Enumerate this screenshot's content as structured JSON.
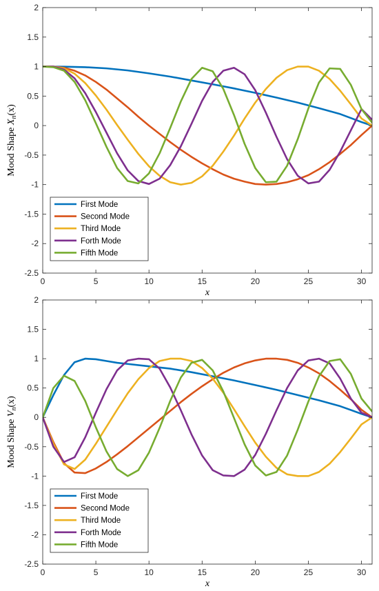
{
  "chart_data": [
    {
      "type": "line",
      "title": "",
      "xlabel": "x",
      "ylabel": "Mood Shape X_n(x)",
      "ylabel_parts": {
        "text": "Mood Shape ",
        "sym": "X",
        "sub": "n",
        "arg": "(x)"
      },
      "xlim": [
        0,
        31
      ],
      "ylim": [
        -2.5,
        2
      ],
      "xticks": [
        "0",
        "5",
        "10",
        "15",
        "20",
        "25",
        "30"
      ],
      "xtick_values": [
        0,
        5,
        10,
        15,
        20,
        25,
        30
      ],
      "yticks": [
        "2",
        "1.5",
        "1",
        "0.5",
        "0",
        "-0.5",
        "-1",
        "-1.5",
        "-2",
        "-2.5"
      ],
      "ytick_values": [
        2,
        1.5,
        1,
        0.5,
        0,
        -0.5,
        -1,
        -1.5,
        -2,
        -2.5
      ],
      "grid": false,
      "legend_position": "bottom-left",
      "series": [
        {
          "name": "First Mode",
          "color": "#0072BD",
          "x": [
            0,
            2,
            4,
            6,
            8,
            10,
            12,
            14,
            16,
            18,
            20,
            22,
            24,
            26,
            28,
            30,
            31
          ],
          "y": [
            1,
            0.998,
            0.99,
            0.97,
            0.935,
            0.885,
            0.83,
            0.765,
            0.7,
            0.63,
            0.555,
            0.475,
            0.39,
            0.295,
            0.195,
            0.06,
            0
          ]
        },
        {
          "name": "Second Mode",
          "color": "#D95319",
          "x": [
            0,
            1,
            2,
            3,
            4,
            5,
            6,
            7,
            8,
            9,
            10,
            11,
            12,
            13,
            14,
            15,
            16,
            17,
            18,
            19,
            20,
            21,
            22,
            23,
            24,
            25,
            26,
            27,
            28,
            29,
            30,
            31
          ],
          "y": [
            1,
            1,
            0.98,
            0.93,
            0.85,
            0.74,
            0.61,
            0.46,
            0.31,
            0.15,
            0.0,
            -0.14,
            -0.28,
            -0.41,
            -0.53,
            -0.64,
            -0.74,
            -0.83,
            -0.9,
            -0.95,
            -0.99,
            -1.0,
            -0.99,
            -0.96,
            -0.91,
            -0.84,
            -0.74,
            -0.62,
            -0.48,
            -0.33,
            -0.16,
            0
          ]
        },
        {
          "name": "Third Mode",
          "color": "#EDB120",
          "x": [
            0,
            1,
            2,
            3,
            4,
            5,
            6,
            7,
            8,
            9,
            10,
            11,
            12,
            13,
            14,
            15,
            16,
            17,
            18,
            19,
            20,
            21,
            22,
            23,
            24,
            25,
            26,
            27,
            28,
            29,
            30,
            31
          ],
          "y": [
            1,
            1,
            0.97,
            0.88,
            0.72,
            0.51,
            0.27,
            0.01,
            -0.24,
            -0.48,
            -0.69,
            -0.85,
            -0.96,
            -1.0,
            -0.97,
            -0.86,
            -0.68,
            -0.44,
            -0.17,
            0.12,
            0.39,
            0.62,
            0.81,
            0.94,
            1.0,
            1.0,
            0.93,
            0.79,
            0.59,
            0.36,
            0.12,
            0
          ]
        },
        {
          "name": "Forth Mode",
          "color": "#7E2F8E",
          "x": [
            0,
            1,
            2,
            3,
            4,
            5,
            6,
            7,
            8,
            9,
            10,
            11,
            12,
            13,
            14,
            15,
            16,
            17,
            18,
            19,
            20,
            21,
            22,
            23,
            24,
            25,
            26,
            27,
            28,
            29,
            30,
            31
          ],
          "y": [
            1,
            1,
            0.95,
            0.8,
            0.55,
            0.23,
            -0.12,
            -0.47,
            -0.76,
            -0.94,
            -0.99,
            -0.9,
            -0.67,
            -0.35,
            0.03,
            0.42,
            0.74,
            0.93,
            0.98,
            0.87,
            0.6,
            0.22,
            -0.19,
            -0.57,
            -0.85,
            -0.98,
            -0.95,
            -0.75,
            -0.44,
            -0.08,
            0.28,
            0.1
          ]
        },
        {
          "name": "Fifth Mode",
          "color": "#77AC30",
          "x": [
            0,
            1,
            2,
            3,
            4,
            5,
            6,
            7,
            8,
            9,
            10,
            11,
            12,
            13,
            14,
            15,
            16,
            17,
            18,
            19,
            20,
            21,
            22,
            23,
            24,
            25,
            26,
            27,
            28,
            29,
            30,
            31
          ],
          "y": [
            1,
            0.99,
            0.93,
            0.74,
            0.43,
            0.04,
            -0.36,
            -0.72,
            -0.94,
            -0.98,
            -0.81,
            -0.47,
            -0.04,
            0.41,
            0.79,
            0.98,
            0.92,
            0.62,
            0.18,
            -0.31,
            -0.72,
            -0.96,
            -0.95,
            -0.68,
            -0.23,
            0.29,
            0.73,
            0.97,
            0.96,
            0.69,
            0.28,
            0.05
          ]
        }
      ]
    },
    {
      "type": "line",
      "title": "",
      "xlabel": "x",
      "ylabel": "Mood Shape V_n(x)",
      "ylabel_parts": {
        "text": "Mood Shape ",
        "sym": "V",
        "sub": "n",
        "arg": "(x)"
      },
      "xlim": [
        0,
        31
      ],
      "ylim": [
        -2.5,
        2
      ],
      "xticks": [
        "0",
        "5",
        "10",
        "15",
        "20",
        "25",
        "30"
      ],
      "xtick_values": [
        0,
        5,
        10,
        15,
        20,
        25,
        30
      ],
      "yticks": [
        "2",
        "1.5",
        "1",
        "0.5",
        "0",
        "-0.5",
        "-1",
        "-1.5",
        "-2",
        "-2.5"
      ],
      "ytick_values": [
        2,
        1.5,
        1,
        0.5,
        0,
        -0.5,
        -1,
        -1.5,
        -2,
        -2.5
      ],
      "grid": false,
      "legend_position": "bottom-left",
      "series": [
        {
          "name": "First Mode",
          "color": "#0072BD",
          "x": [
            0,
            1,
            2,
            3,
            4,
            5,
            6,
            7,
            8,
            10,
            12,
            14,
            16,
            18,
            20,
            22,
            24,
            26,
            28,
            30,
            31
          ],
          "y": [
            0,
            0.38,
            0.72,
            0.94,
            1.0,
            0.99,
            0.96,
            0.93,
            0.91,
            0.87,
            0.83,
            0.77,
            0.7,
            0.63,
            0.55,
            0.47,
            0.38,
            0.29,
            0.19,
            0.06,
            0
          ]
        },
        {
          "name": "Second Mode",
          "color": "#D95319",
          "x": [
            0,
            1,
            2,
            3,
            4,
            5,
            6,
            7,
            8,
            9,
            10,
            11,
            12,
            13,
            14,
            15,
            16,
            17,
            18,
            19,
            20,
            21,
            22,
            23,
            24,
            25,
            26,
            27,
            28,
            29,
            30,
            31
          ],
          "y": [
            0,
            -0.42,
            -0.78,
            -0.94,
            -0.95,
            -0.87,
            -0.76,
            -0.63,
            -0.49,
            -0.34,
            -0.19,
            -0.04,
            0.11,
            0.26,
            0.4,
            0.53,
            0.65,
            0.76,
            0.85,
            0.92,
            0.97,
            1.0,
            1.0,
            0.98,
            0.93,
            0.85,
            0.75,
            0.62,
            0.47,
            0.31,
            0.13,
            0
          ]
        },
        {
          "name": "Third Mode",
          "color": "#EDB120",
          "x": [
            0,
            1,
            2,
            3,
            4,
            5,
            6,
            7,
            8,
            9,
            10,
            11,
            12,
            13,
            14,
            15,
            16,
            17,
            18,
            19,
            20,
            21,
            22,
            23,
            24,
            25,
            26,
            27,
            28,
            29,
            30,
            31
          ],
          "y": [
            0,
            -0.45,
            -0.8,
            -0.88,
            -0.72,
            -0.45,
            -0.16,
            0.13,
            0.41,
            0.65,
            0.84,
            0.96,
            1.0,
            1.0,
            0.96,
            0.84,
            0.66,
            0.42,
            0.14,
            -0.15,
            -0.43,
            -0.67,
            -0.86,
            -0.97,
            -1.0,
            -1.0,
            -0.93,
            -0.79,
            -0.59,
            -0.36,
            -0.12,
            0
          ]
        },
        {
          "name": "Forth Mode",
          "color": "#7E2F8E",
          "x": [
            0,
            1,
            2,
            3,
            4,
            5,
            6,
            7,
            8,
            9,
            10,
            11,
            12,
            13,
            14,
            15,
            16,
            17,
            18,
            19,
            20,
            21,
            22,
            23,
            24,
            25,
            26,
            27,
            28,
            29,
            30,
            31
          ],
          "y": [
            0,
            -0.5,
            -0.76,
            -0.68,
            -0.34,
            0.08,
            0.48,
            0.8,
            0.97,
            1.0,
            0.99,
            0.83,
            0.51,
            0.12,
            -0.29,
            -0.65,
            -0.9,
            -0.99,
            -1.0,
            -0.89,
            -0.64,
            -0.28,
            0.12,
            0.5,
            0.8,
            0.97,
            1.0,
            0.92,
            0.66,
            0.32,
            0.08,
            0
          ]
        },
        {
          "name": "Fifth Mode",
          "color": "#77AC30",
          "x": [
            0,
            1,
            2,
            3,
            4,
            5,
            6,
            7,
            8,
            9,
            10,
            11,
            12,
            13,
            14,
            15,
            16,
            17,
            18,
            19,
            20,
            21,
            22,
            23,
            24,
            25,
            26,
            27,
            28,
            29,
            30,
            31
          ],
          "y": [
            0,
            0.5,
            0.71,
            0.62,
            0.28,
            -0.17,
            -0.58,
            -0.88,
            -1.0,
            -0.9,
            -0.6,
            -0.18,
            0.28,
            0.68,
            0.93,
            0.98,
            0.8,
            0.44,
            -0.01,
            -0.46,
            -0.82,
            -0.99,
            -0.93,
            -0.65,
            -0.21,
            0.27,
            0.7,
            0.96,
            0.99,
            0.74,
            0.32,
            0.1
          ]
        }
      ]
    }
  ]
}
